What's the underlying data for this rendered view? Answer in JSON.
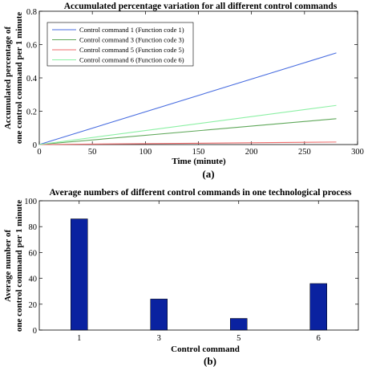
{
  "chart_data": [
    {
      "type": "line",
      "title": "Accumulated percentage variation for all different control commands",
      "xlabel": "Time (minute)",
      "ylabel": [
        "Accumulated percentage of",
        "one control command per 1 minute"
      ],
      "panel_label": "(a)",
      "xlim": [
        0,
        300
      ],
      "ylim": [
        0,
        0.8
      ],
      "xticks": [
        0,
        50,
        100,
        150,
        200,
        250,
        300
      ],
      "yticks": [
        0,
        0.2,
        0.4,
        0.6,
        0.8
      ],
      "legend_position": "top-left",
      "series": [
        {
          "name": "Control command 1 (Function code 1)",
          "color": "#4a6ee0",
          "x": [
            0,
            280
          ],
          "y": [
            0,
            0.55
          ]
        },
        {
          "name": "Control command 3 (Function code 3)",
          "color": "#5fa85a",
          "x": [
            0,
            280
          ],
          "y": [
            0,
            0.155
          ]
        },
        {
          "name": "Control command 5 (Function code 5)",
          "color": "#ee6a6a",
          "x": [
            0,
            280
          ],
          "y": [
            0,
            0.015
          ]
        },
        {
          "name": "Control command 6 (Function code 6)",
          "color": "#8cf0a4",
          "x": [
            0,
            280
          ],
          "y": [
            0,
            0.235
          ]
        }
      ]
    },
    {
      "type": "bar",
      "title": "Average numbers of different control commands in one technological process",
      "xlabel": "Control command",
      "ylabel": [
        "Average number of",
        "one control command per 1 minute"
      ],
      "panel_label": "(b)",
      "categories": [
        "1",
        "3",
        "5",
        "6"
      ],
      "values": [
        86,
        24,
        9,
        36
      ],
      "ylim": [
        0,
        100
      ],
      "yticks": [
        0,
        20,
        40,
        60,
        80,
        100
      ],
      "bar_color": "#0a22a0"
    }
  ]
}
